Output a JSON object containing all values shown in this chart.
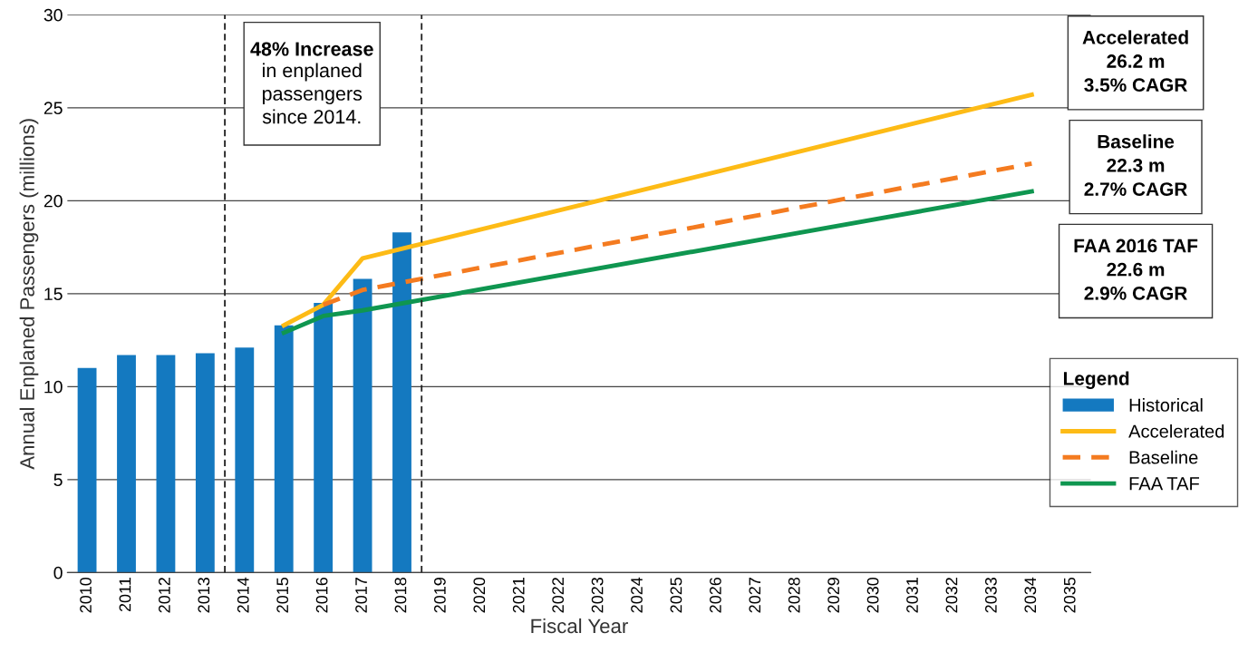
{
  "chart_data": {
    "type": "bar",
    "xlabel": "Fiscal Year",
    "ylabel": "Annual Enplaned Passengers (millions)",
    "x": [
      2010,
      2011,
      2012,
      2013,
      2014,
      2015,
      2016,
      2017,
      2018
    ],
    "series": [
      {
        "name": "Historical",
        "color": "#1479c0",
        "values": [
          11.0,
          11.7,
          11.7,
          11.8,
          12.1,
          13.3,
          14.5,
          15.8,
          18.3
        ]
      },
      {
        "name": "Accelerated",
        "type": "line",
        "color": "#fdbb16",
        "line_style": "solid",
        "x": [
          2015,
          2016,
          2017,
          2034
        ],
        "values": [
          13.3,
          14.4,
          16.9,
          25.7
        ]
      },
      {
        "name": "Baseline",
        "type": "line",
        "color": "#f47b20",
        "line_style": "dashed",
        "x": [
          2016,
          2017,
          2034
        ],
        "values": [
          14.4,
          15.2,
          22.0
        ]
      },
      {
        "name": "FAA TAF",
        "type": "line",
        "color": "#0f9650",
        "line_style": "solid",
        "x": [
          2015,
          2016,
          2017,
          2034
        ],
        "values": [
          12.9,
          13.8,
          14.1,
          20.5
        ]
      }
    ],
    "xlim": [
      2009.5,
      2035.5
    ],
    "xticks": [
      2010,
      2011,
      2012,
      2013,
      2014,
      2015,
      2016,
      2017,
      2018,
      2019,
      2020,
      2021,
      2022,
      2023,
      2024,
      2025,
      2026,
      2027,
      2028,
      2029,
      2030,
      2031,
      2032,
      2033,
      2034,
      2035
    ],
    "ylim": [
      0,
      30
    ],
    "yticks": [
      0,
      5,
      10,
      15,
      20,
      25,
      30
    ],
    "grid": "y",
    "ref_lines": [
      {
        "axis": "x",
        "value": 2013.5,
        "color": "#222222",
        "line_style": "dashed"
      },
      {
        "axis": "x",
        "value": 2018.5,
        "color": "#222222",
        "line_style": "dashed"
      }
    ],
    "legend": "right",
    "legend_title": "Legend",
    "annotations": [
      "48% Increase",
      "in enplaned\npassengers\nsince 2014.",
      "Accelerated\n26.2 m\n3.5% CAGR",
      "Baseline\n22.3 m\n2.7% CAGR",
      "FAA 2016 TAF\n22.6 m\n2.9% CAGR"
    ]
  }
}
